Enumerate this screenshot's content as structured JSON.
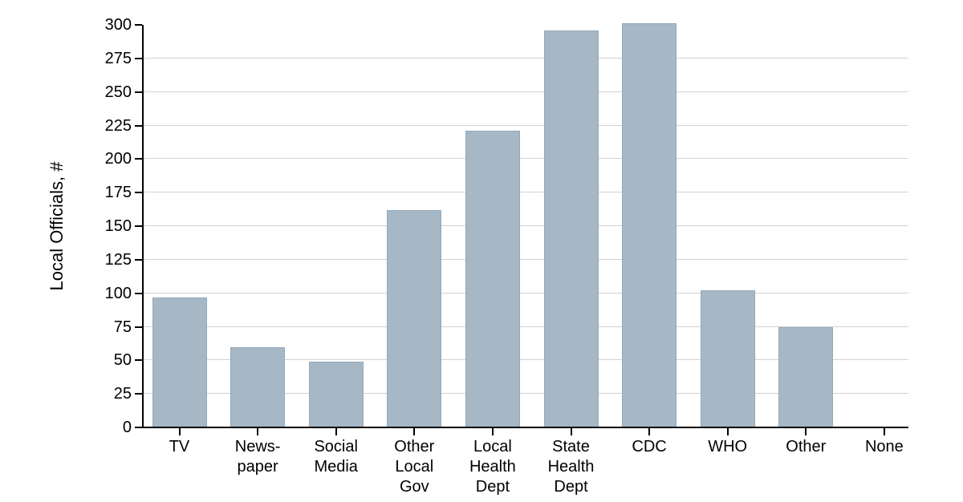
{
  "chart_data": {
    "type": "bar",
    "title": "",
    "ylabel": "Local Officials, #",
    "xlabel": "",
    "categories": [
      "TV",
      "News-\npaper",
      "Social\nMedia",
      "Other\nLocal\nGov",
      "Local\nHealth\nDept",
      "State\nHealth\nDept",
      "CDC",
      "WHO",
      "Other",
      "None"
    ],
    "values": [
      97,
      60,
      49,
      162,
      221,
      296,
      301,
      102,
      75,
      0
    ],
    "ylim": [
      0,
      300
    ],
    "ytick_step": 25,
    "yticks": [
      0,
      25,
      50,
      75,
      100,
      125,
      150,
      175,
      200,
      225,
      250,
      275,
      300
    ],
    "grid": "horizontal",
    "legend": "none",
    "colors": {
      "bar_fill": "#a6b7c6",
      "bar_border": "#95a9b9",
      "gridline": "#d2d2d6",
      "axis": "#000000",
      "text": "#000000"
    }
  }
}
